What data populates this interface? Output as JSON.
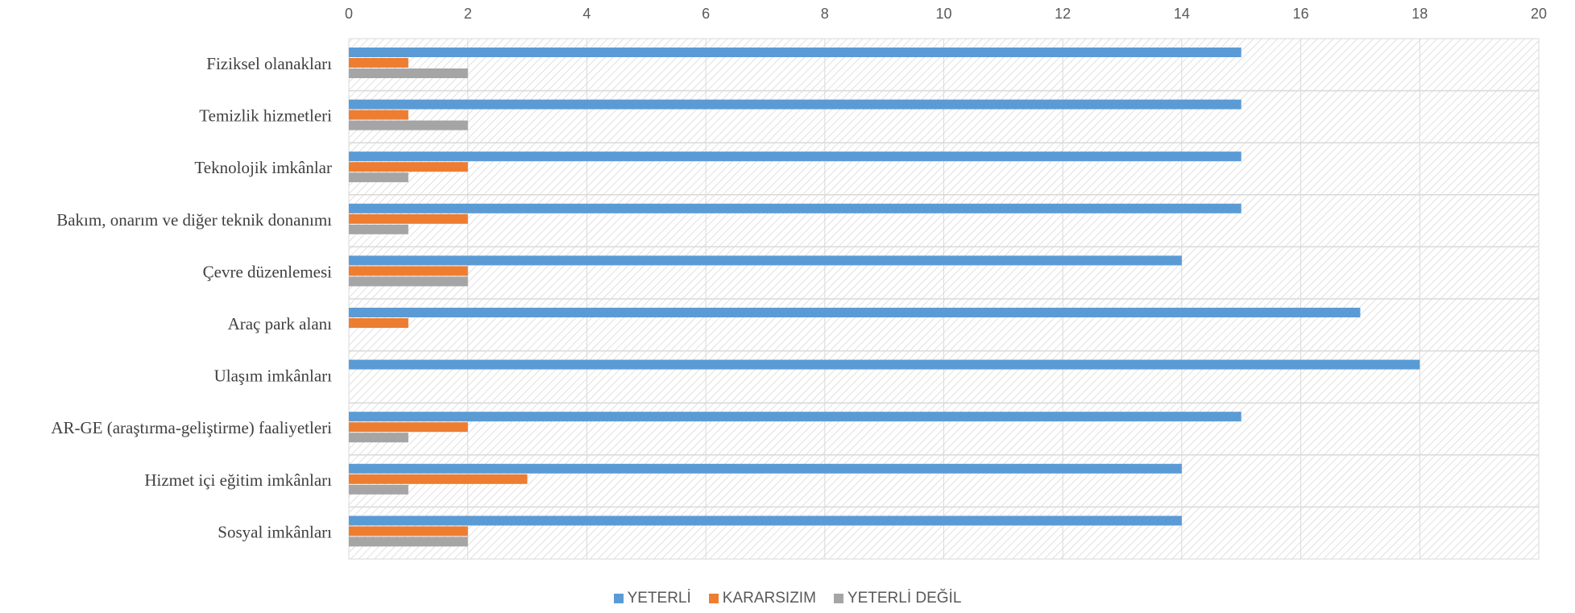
{
  "chart_data": {
    "type": "bar",
    "orientation": "horizontal",
    "title": "",
    "xlabel": "",
    "ylabel": "",
    "xlim": [
      0,
      20
    ],
    "x_ticks": [
      0,
      2,
      4,
      6,
      8,
      10,
      12,
      14,
      16,
      18,
      20
    ],
    "x_tick_labels": [
      "0",
      "2",
      "4",
      "6",
      "8",
      "10",
      "12",
      "14",
      "16",
      "18",
      "20"
    ],
    "x_axis_position": "top",
    "grid": true,
    "legend_position": "bottom",
    "categories": [
      "Fiziksel olanakları",
      "Temizlik hizmetleri",
      "Teknolojik imkânlar",
      "Bakım, onarım ve diğer teknik donanımı",
      "Çevre düzenlemesi",
      "Araç park alanı",
      "Ulaşım imkânları",
      "AR-GE (araştırma-geliştirme) faaliyetleri",
      "Hizmet içi eğitim imkânları",
      "Sosyal imkânları"
    ],
    "series": [
      {
        "name": "YETERLİ",
        "color": "#5B9BD5",
        "values": [
          15,
          15,
          15,
          15,
          14,
          17,
          18,
          15,
          14,
          14
        ]
      },
      {
        "name": "KARARSIZIM",
        "color": "#ED7D31",
        "values": [
          1,
          1,
          2,
          2,
          2,
          1,
          0,
          2,
          3,
          2
        ]
      },
      {
        "name": "YETERLİ DEĞİL",
        "color": "#A5A5A5",
        "values": [
          2,
          2,
          1,
          1,
          2,
          0,
          0,
          1,
          1,
          2
        ]
      }
    ]
  }
}
